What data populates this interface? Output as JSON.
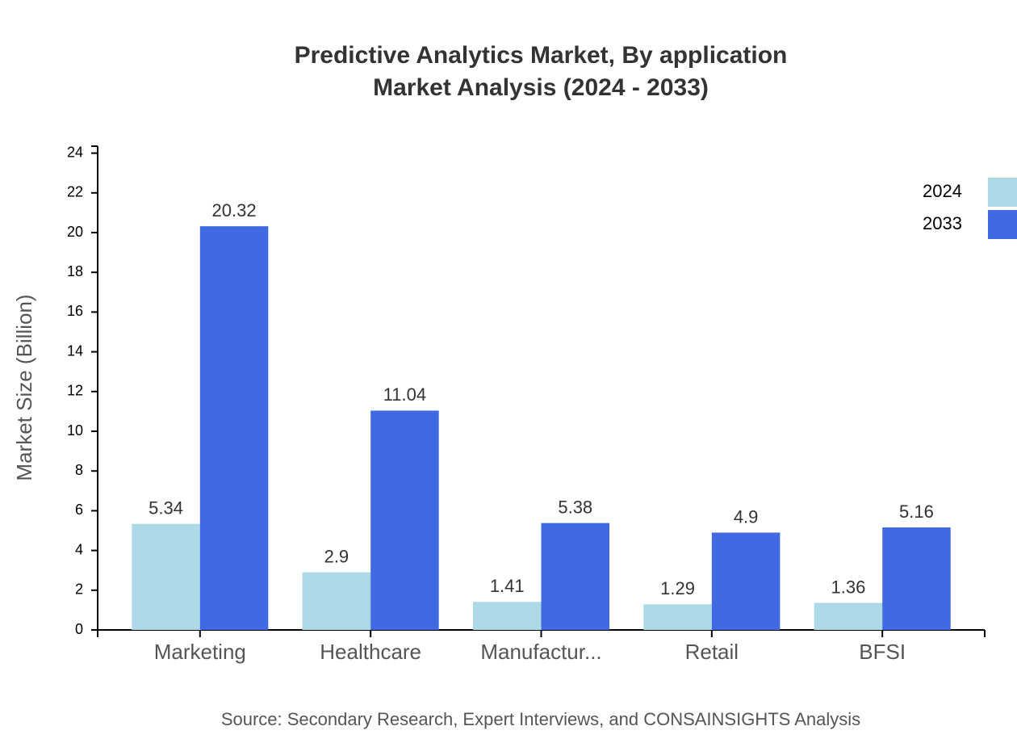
{
  "chart_data": {
    "type": "bar",
    "title": "Predictive Analytics Market, By application",
    "subtitle": "Market Analysis (2024 - 2033)",
    "y_label": "Market Size (Billion)",
    "source": "Source: Secondary Research, Expert Interviews, and CONSAINSIGHTS Analysis",
    "categories": [
      "Marketing",
      "Healthcare",
      "Manufactur...",
      "Retail",
      "BFSI"
    ],
    "series": [
      {
        "name": "2024",
        "color": "#add8e6",
        "values": [
          5.34,
          2.9,
          1.41,
          1.29,
          1.36
        ]
      },
      {
        "name": "2033",
        "color": "#4169e1",
        "values": [
          20.32,
          11.04,
          5.38,
          4.9,
          5.16
        ]
      }
    ],
    "ylim": [
      0,
      24.35
    ],
    "yticks": [
      0,
      2,
      4,
      6,
      8,
      10,
      12,
      14,
      16,
      18,
      20,
      22,
      24
    ],
    "legend": "top-right"
  }
}
